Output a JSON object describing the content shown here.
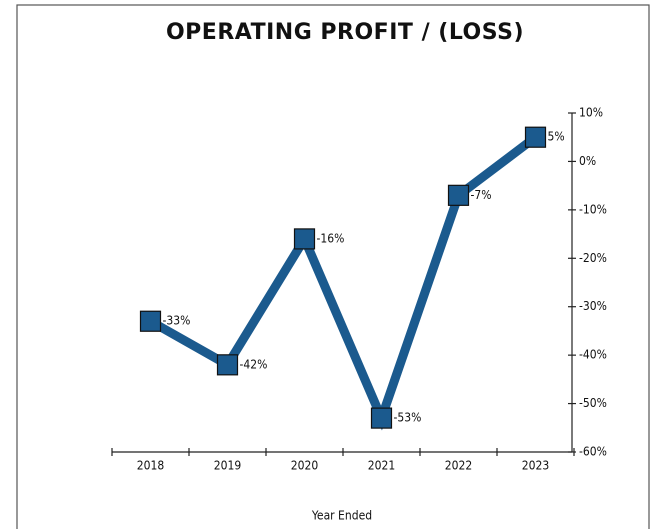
{
  "chart_data": {
    "type": "line",
    "title": "OPERATING PROFIT / (LOSS)",
    "x_label": "Year Ended",
    "categories": [
      "2018",
      "2019",
      "2020",
      "2021",
      "2022",
      "2023"
    ],
    "series": [
      {
        "name": "Operating Profit / (Loss)",
        "color": "#1b5a8e",
        "values": [
          -33,
          -42,
          -16,
          -53,
          -7,
          5
        ],
        "value_labels": [
          "-33%",
          "-42%",
          "-16%",
          "-53%",
          "-7%",
          "5%"
        ]
      }
    ],
    "ylim": [
      -60,
      10
    ],
    "yticks": [
      {
        "value": 10,
        "label": "10%"
      },
      {
        "value": 0,
        "label": "0%"
      },
      {
        "value": -10,
        "label": "-10%"
      },
      {
        "value": -20,
        "label": "-20%"
      },
      {
        "value": -30,
        "label": "-30%"
      },
      {
        "value": -40,
        "label": "-40%"
      },
      {
        "value": -50,
        "label": "-50%"
      },
      {
        "value": -60,
        "label": "-60%"
      }
    ],
    "y_axis_side": "right",
    "grid": false
  }
}
